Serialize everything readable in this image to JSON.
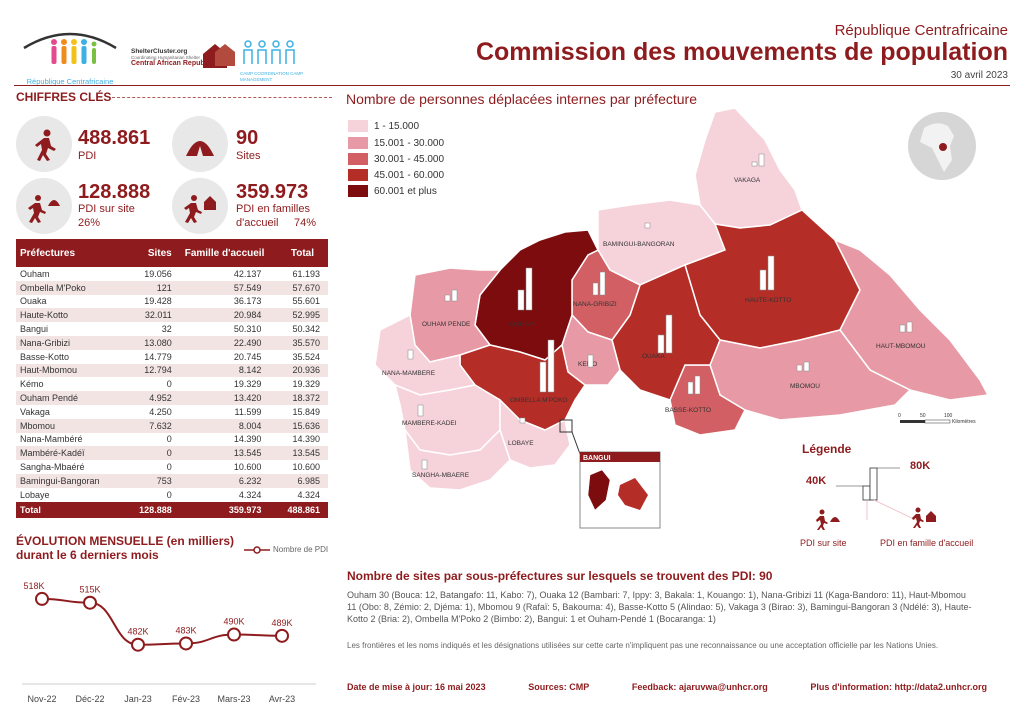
{
  "header": {
    "logo_text": "République Centrafricaine",
    "shelter_logo": "ShelterCluster.org",
    "shelter_sub": "Coordinating Humanitarian Shelter",
    "shelter_country": "Central African Republic",
    "cccm_logo": "CAMP COORDINATION CAMP MANAGEMENT",
    "country": "République Centrafricaine",
    "title": "Commission des mouvements de population",
    "date": "30 avril 2023"
  },
  "key_figures": {
    "section_title": "CHIFFRES CLÉS",
    "items": [
      {
        "value": "488.861",
        "label": "PDI",
        "icon": "walking-person-icon"
      },
      {
        "value": "90",
        "label": "Sites",
        "icon": "tent-icon"
      },
      {
        "value": "128.888",
        "label": "PDI sur site",
        "pct": "26%",
        "icon": "person-to-tent-icon"
      },
      {
        "value": "359.973",
        "label": "PDI en familles",
        "label2": "d'accueil",
        "pct": "74%",
        "icon": "person-to-house-icon"
      }
    ]
  },
  "table": {
    "headers": [
      "Préfectures",
      "Sites",
      "Famille d'accueil",
      "Total"
    ],
    "rows": [
      [
        "Ouham",
        "19.056",
        "42.137",
        "61.193"
      ],
      [
        "Ombella M'Poko",
        "121",
        "57.549",
        "57.670"
      ],
      [
        "Ouaka",
        "19.428",
        "36.173",
        "55.601"
      ],
      [
        "Haute-Kotto",
        "32.011",
        "20.984",
        "52.995"
      ],
      [
        "Bangui",
        "32",
        "50.310",
        "50.342"
      ],
      [
        "Nana-Gribizi",
        "13.080",
        "22.490",
        "35.570"
      ],
      [
        "Basse-Kotto",
        "14.779",
        "20.745",
        "35.524"
      ],
      [
        "Haut-Mbomou",
        "12.794",
        "8.142",
        "20.936"
      ],
      [
        "Kémo",
        "0",
        "19.329",
        "19.329"
      ],
      [
        "Ouham Pendé",
        "4.952",
        "13.420",
        "18.372"
      ],
      [
        "Vakaga",
        "4.250",
        "11.599",
        "15.849"
      ],
      [
        "Mbomou",
        "7.632",
        "8.004",
        "15.636"
      ],
      [
        "Nana-Mambéré",
        "0",
        "14.390",
        "14.390"
      ],
      [
        "Mambéré-Kadéï",
        "0",
        "13.545",
        "13.545"
      ],
      [
        "Sangha-Mbaéré",
        "0",
        "10.600",
        "10.600"
      ],
      [
        "Bamingui-Bangoran",
        "753",
        "6.232",
        "6.985"
      ],
      [
        "Lobaye",
        "0",
        "4.324",
        "4.324"
      ]
    ],
    "total": [
      "Total",
      "128.888",
      "359.973",
      "488.861"
    ]
  },
  "evolution": {
    "title_line1": "ÉVOLUTION MENSUELLE (en milliers)",
    "title_line2": "durant le 6 derniers mois",
    "legend": "Nombre de PDI"
  },
  "chart_data": {
    "type": "line",
    "title": "ÉVOLUTION MENSUELLE (en milliers)",
    "categories": [
      "Nov-22",
      "Déc-22",
      "Jan-23",
      "Fév-23",
      "Mars-23",
      "Avr-23"
    ],
    "series": [
      {
        "name": "Nombre de PDI",
        "values": [
          518,
          515,
          482,
          483,
          490,
          489
        ],
        "labels": [
          "518K",
          "515K",
          "482K",
          "483K",
          "490K",
          "489K"
        ]
      }
    ],
    "ylim": [
      470,
      525
    ]
  },
  "map": {
    "title": "Nombre de personnes déplacées internes par préfecture",
    "legend_classes": [
      {
        "label": "1 - 15.000",
        "color": "#f6d3da"
      },
      {
        "label": "15.001 - 30.000",
        "color": "#e79aa5"
      },
      {
        "label": "30.001 - 45.000",
        "color": "#d25f63"
      },
      {
        "label": "45.001 - 60.000",
        "color": "#b52d27"
      },
      {
        "label": "60.001 et plus",
        "color": "#7d0c0e"
      }
    ],
    "region_labels": [
      "VAKAGA",
      "BAMINGUI-BANGORAN",
      "HAUTE-KOTTO",
      "NANA-GRIBIZI",
      "OUHAM",
      "OUHAM PENDE",
      "HAUT-MBOMOU",
      "KEMO",
      "OUAKA",
      "MBOMOU",
      "NANA-MAMBERE",
      "OMBELLA M'POKO",
      "BASSE-KOTTO",
      "MAMBERE-KADEI",
      "LOBAYE",
      "SANGHA-MBAERE"
    ],
    "inset_label": "BANGUI",
    "scale_ticks": [
      "0",
      "50",
      "100"
    ],
    "scale_unit": "Kilomètres",
    "legend_title": "Légende",
    "legend_40k": "40K",
    "legend_80k": "80K",
    "legend_sites": "PDI sur site",
    "legend_families": "PDI en famille d'accueil"
  },
  "sites": {
    "title": "Nombre de sites par sous-préfectures sur lesquels se trouvent des PDI: 90",
    "text": "Ouham 30 (Bouca: 12, Batangafo: 11, Kabo: 7), Ouaka 12 (Bambari: 7, Ippy: 3, Bakala: 1, Kouango: 1), Nana-Gribizi 11 (Kaga-Bandoro: 11), Haut-Mbomou 11 (Obo: 8, Zémio: 2, Djéma: 1), Mbomou 9 (Rafaï: 5, Bakouma: 4), Basse-Kotto 5 (Alindao: 5), Vakaga 3 (Birao: 3), Bamingui-Bangoran 3 (Ndélé: 3), Haute-Kotto 2 (Bria: 2), Ombella M'Poko 2 (Bimbo: 2), Bangui: 1 et Ouham-Pendé 1 (Bocaranga: 1)",
    "disclaimer": "Les frontières et les noms indiqués et les désignations utilisées sur cette carte n'impliquent pas une reconnaissance ou une acceptation officielle par les Nations Unies."
  },
  "footer": {
    "updated": "Date de mise à jour: 16 mai 2023",
    "sources": "Sources: CMP",
    "feedback": "Feedback: ajaruvwa@unhcr.org",
    "info": "Plus d'information: http://data2.unhcr.org"
  }
}
